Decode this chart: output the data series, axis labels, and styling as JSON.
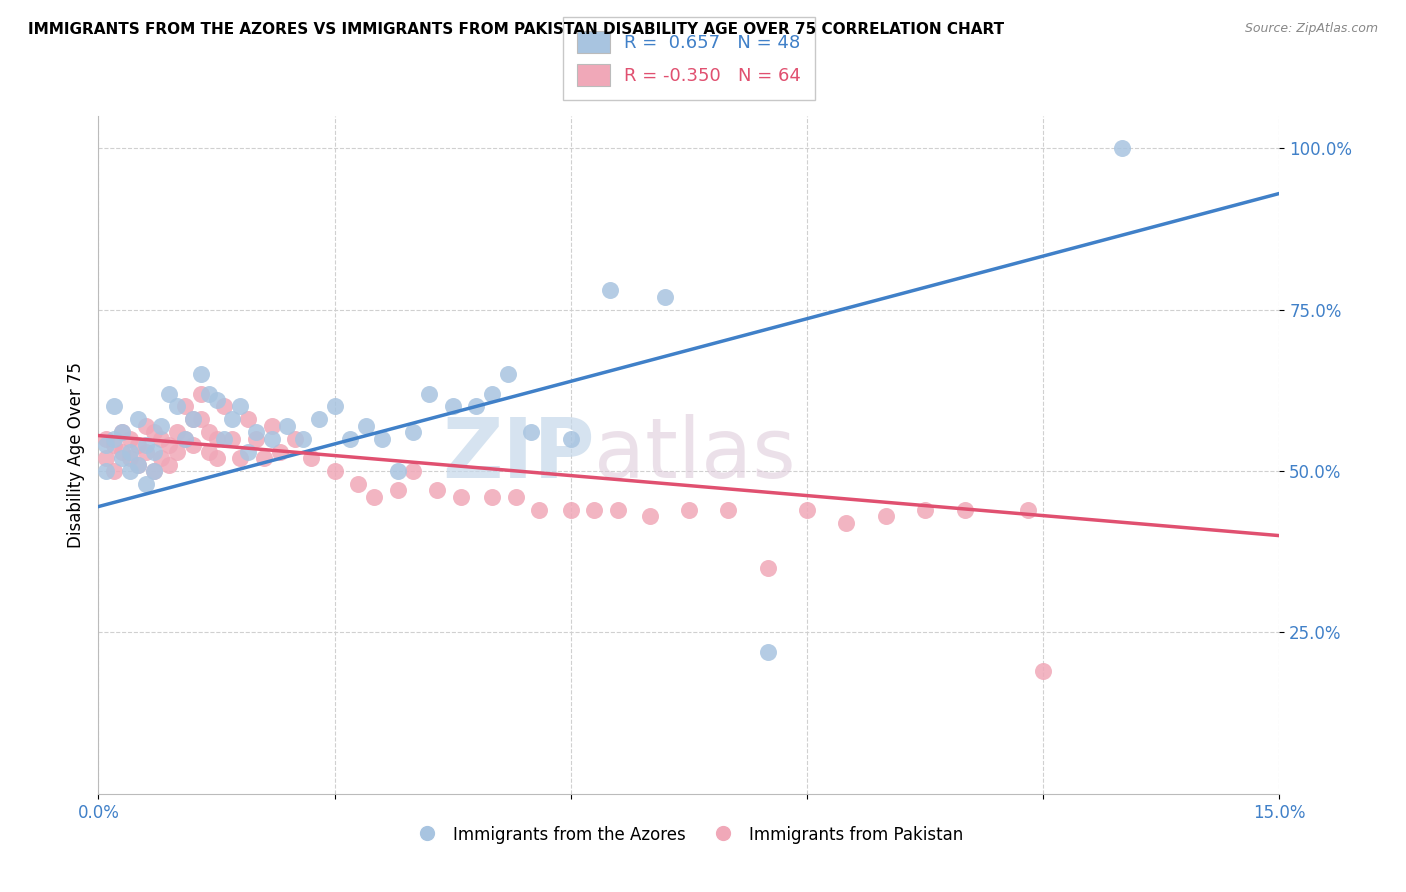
{
  "title": "IMMIGRANTS FROM THE AZORES VS IMMIGRANTS FROM PAKISTAN DISABILITY AGE OVER 75 CORRELATION CHART",
  "source": "Source: ZipAtlas.com",
  "ylabel": "Disability Age Over 75",
  "xlim": [
    0.0,
    0.15
  ],
  "ylim": [
    0.0,
    1.05
  ],
  "ytick_values": [
    0.25,
    0.5,
    0.75,
    1.0
  ],
  "ytick_labels": [
    "25.0%",
    "50.0%",
    "75.0%",
    "100.0%"
  ],
  "xtick_values": [
    0.0,
    0.03,
    0.06,
    0.09,
    0.12,
    0.15
  ],
  "xtick_labels": [
    "0.0%",
    "",
    "",
    "",
    "",
    "15.0%"
  ],
  "azores_color": "#a8c4e0",
  "pakistan_color": "#f0a8b8",
  "azores_line_color": "#4080c8",
  "pakistan_line_color": "#e05070",
  "legend_R_azores": " 0.657",
  "legend_N_azores": "48",
  "legend_R_pakistan": "-0.350",
  "legend_N_pakistan": "64",
  "azores_scatter_x": [
    0.001,
    0.001,
    0.002,
    0.002,
    0.003,
    0.003,
    0.004,
    0.004,
    0.005,
    0.005,
    0.006,
    0.006,
    0.007,
    0.007,
    0.008,
    0.009,
    0.01,
    0.011,
    0.012,
    0.013,
    0.014,
    0.015,
    0.016,
    0.017,
    0.018,
    0.019,
    0.02,
    0.022,
    0.024,
    0.026,
    0.028,
    0.03,
    0.032,
    0.034,
    0.036,
    0.038,
    0.04,
    0.042,
    0.045,
    0.048,
    0.05,
    0.052,
    0.055,
    0.06,
    0.065,
    0.072,
    0.085,
    0.13
  ],
  "azores_scatter_y": [
    0.5,
    0.54,
    0.6,
    0.55,
    0.52,
    0.56,
    0.5,
    0.53,
    0.58,
    0.51,
    0.54,
    0.48,
    0.5,
    0.53,
    0.57,
    0.62,
    0.6,
    0.55,
    0.58,
    0.65,
    0.62,
    0.61,
    0.55,
    0.58,
    0.6,
    0.53,
    0.56,
    0.55,
    0.57,
    0.55,
    0.58,
    0.6,
    0.55,
    0.57,
    0.55,
    0.5,
    0.56,
    0.62,
    0.6,
    0.6,
    0.62,
    0.65,
    0.56,
    0.55,
    0.78,
    0.77,
    0.22,
    1.0
  ],
  "pakistan_scatter_x": [
    0.001,
    0.001,
    0.002,
    0.002,
    0.003,
    0.003,
    0.004,
    0.004,
    0.005,
    0.005,
    0.006,
    0.006,
    0.007,
    0.007,
    0.008,
    0.008,
    0.009,
    0.009,
    0.01,
    0.01,
    0.011,
    0.011,
    0.012,
    0.012,
    0.013,
    0.013,
    0.014,
    0.014,
    0.015,
    0.015,
    0.016,
    0.017,
    0.018,
    0.019,
    0.02,
    0.021,
    0.022,
    0.023,
    0.025,
    0.027,
    0.03,
    0.033,
    0.035,
    0.038,
    0.04,
    0.043,
    0.046,
    0.05,
    0.053,
    0.056,
    0.06,
    0.063,
    0.066,
    0.07,
    0.075,
    0.08,
    0.085,
    0.09,
    0.095,
    0.1,
    0.105,
    0.11,
    0.118,
    0.12
  ],
  "pakistan_scatter_y": [
    0.55,
    0.52,
    0.54,
    0.5,
    0.56,
    0.53,
    0.52,
    0.55,
    0.51,
    0.54,
    0.57,
    0.53,
    0.56,
    0.5,
    0.52,
    0.55,
    0.54,
    0.51,
    0.56,
    0.53,
    0.6,
    0.55,
    0.58,
    0.54,
    0.62,
    0.58,
    0.56,
    0.53,
    0.55,
    0.52,
    0.6,
    0.55,
    0.52,
    0.58,
    0.55,
    0.52,
    0.57,
    0.53,
    0.55,
    0.52,
    0.5,
    0.48,
    0.46,
    0.47,
    0.5,
    0.47,
    0.46,
    0.46,
    0.46,
    0.44,
    0.44,
    0.44,
    0.44,
    0.43,
    0.44,
    0.44,
    0.35,
    0.44,
    0.42,
    0.43,
    0.44,
    0.44,
    0.44,
    0.19
  ],
  "azores_line_x0": 0.0,
  "azores_line_y0": 0.445,
  "azores_line_x1": 0.15,
  "azores_line_y1": 0.93,
  "pakistan_line_x0": 0.0,
  "pakistan_line_y0": 0.555,
  "pakistan_line_x1": 0.15,
  "pakistan_line_y1": 0.4,
  "background_color": "#ffffff",
  "grid_color": "#d0d0d0",
  "watermark_zip_color": "#c8d8e8",
  "watermark_atlas_color": "#d8c8d8"
}
